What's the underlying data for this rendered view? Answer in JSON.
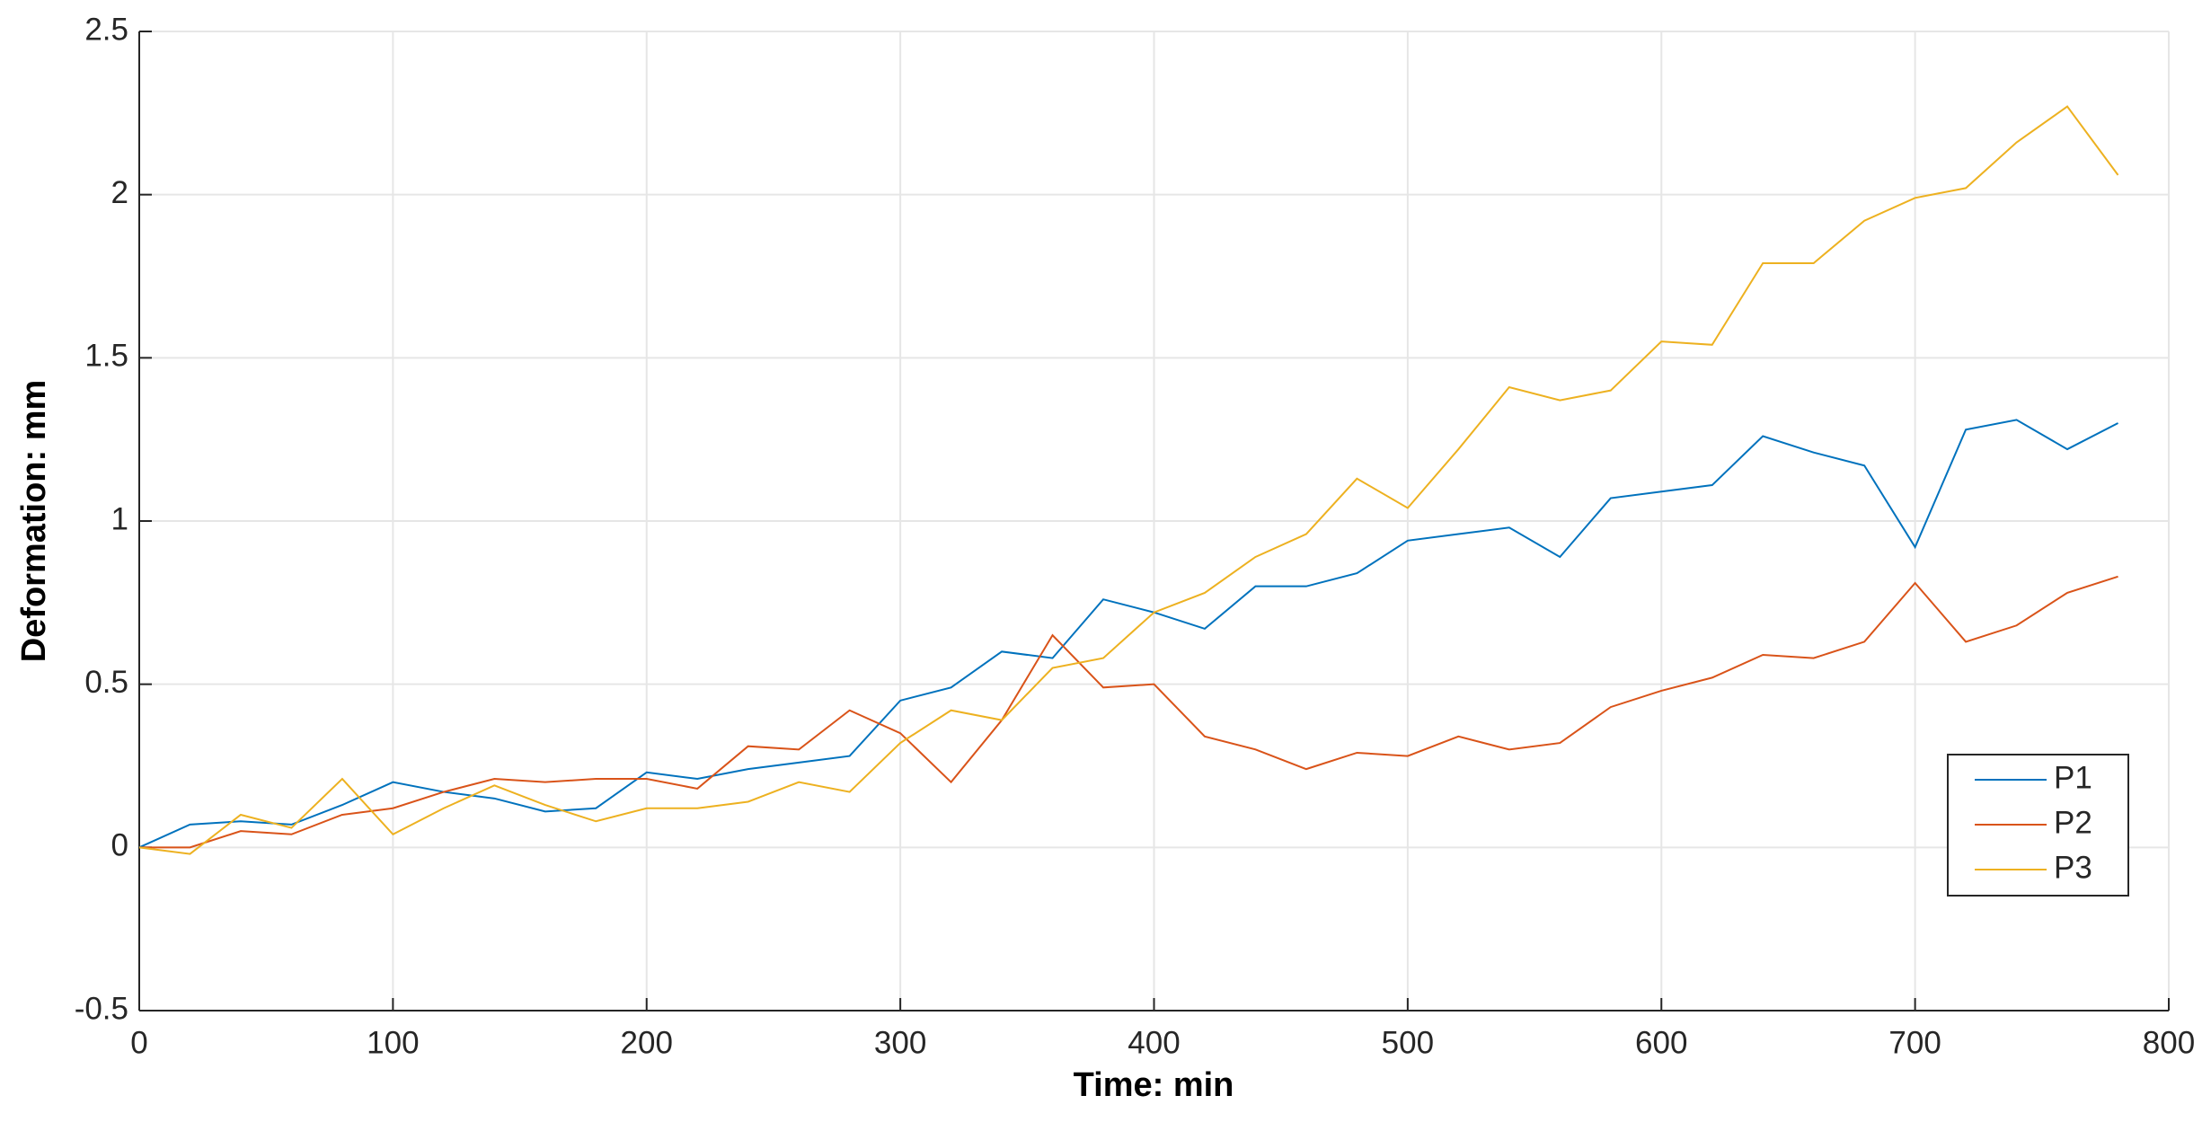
{
  "chart_data": {
    "type": "line",
    "xlabel": "Time: min",
    "ylabel": "Deformation: mm",
    "x": [
      0,
      20,
      40,
      60,
      80,
      100,
      120,
      140,
      160,
      180,
      200,
      220,
      240,
      260,
      280,
      300,
      320,
      340,
      360,
      380,
      400,
      420,
      440,
      460,
      480,
      500,
      520,
      540,
      560,
      580,
      600,
      620,
      640,
      660,
      680,
      700,
      720,
      740,
      760,
      780
    ],
    "series": [
      {
        "name": "P1",
        "color": "#0072bd",
        "values": [
          0,
          0.07,
          0.08,
          0.07,
          0.13,
          0.2,
          0.17,
          0.15,
          0.11,
          0.12,
          0.23,
          0.21,
          0.24,
          0.26,
          0.28,
          0.45,
          0.49,
          0.6,
          0.58,
          0.76,
          0.72,
          0.67,
          0.8,
          0.8,
          0.84,
          0.94,
          0.96,
          0.98,
          0.89,
          1.07,
          1.09,
          1.11,
          1.26,
          1.21,
          1.17,
          0.92,
          1.28,
          1.31,
          1.22,
          1.3
        ]
      },
      {
        "name": "P2",
        "color": "#d95319",
        "values": [
          0,
          0,
          0.05,
          0.04,
          0.1,
          0.12,
          0.17,
          0.21,
          0.2,
          0.21,
          0.21,
          0.18,
          0.31,
          0.3,
          0.42,
          0.35,
          0.2,
          0.39,
          0.65,
          0.49,
          0.5,
          0.34,
          0.3,
          0.24,
          0.29,
          0.28,
          0.34,
          0.3,
          0.32,
          0.43,
          0.48,
          0.52,
          0.59,
          0.58,
          0.63,
          0.81,
          0.63,
          0.68,
          0.78,
          0.83
        ]
      },
      {
        "name": "P3",
        "color": "#edb120",
        "values": [
          0,
          -0.02,
          0.1,
          0.06,
          0.21,
          0.04,
          0.12,
          0.19,
          0.13,
          0.08,
          0.12,
          0.12,
          0.14,
          0.2,
          0.17,
          0.32,
          0.42,
          0.39,
          0.55,
          0.58,
          0.72,
          0.78,
          0.89,
          0.96,
          1.13,
          1.04,
          1.22,
          1.41,
          1.37,
          1.4,
          1.55,
          1.54,
          1.79,
          1.79,
          1.92,
          1.99,
          2.02,
          2.16,
          2.27,
          2.06
        ]
      }
    ],
    "xlim": [
      0,
      800
    ],
    "xticks": [
      0,
      100,
      200,
      300,
      400,
      500,
      600,
      700,
      800
    ],
    "ylim": [
      -0.5,
      2.5
    ],
    "yticks": [
      -0.5,
      0,
      0.5,
      1,
      1.5,
      2,
      2.5
    ],
    "grid": true,
    "legend": "lower right"
  }
}
